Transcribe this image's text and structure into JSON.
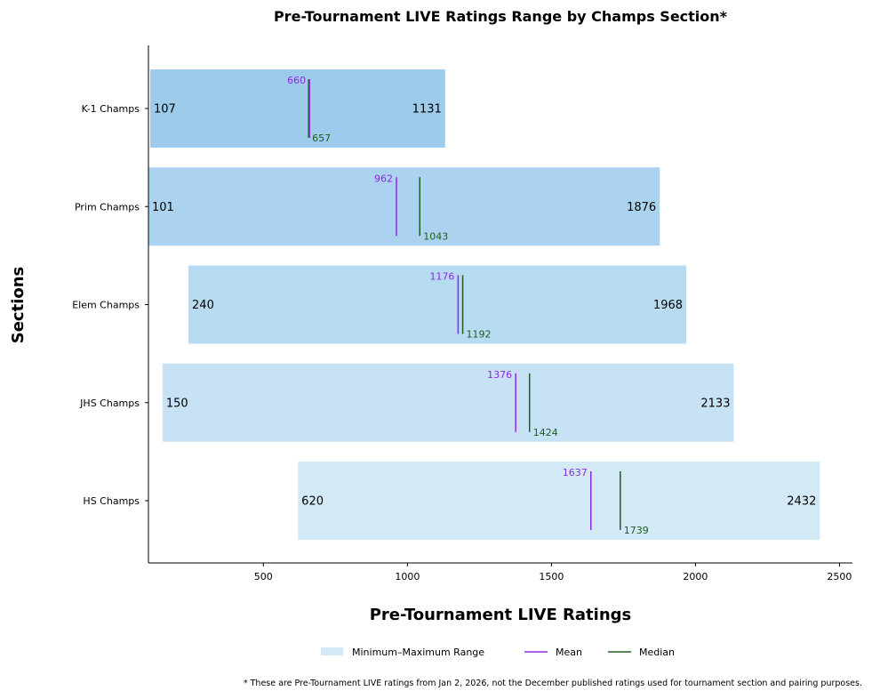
{
  "chart_data": {
    "type": "bar",
    "orientation": "horizontal-range",
    "title": "Pre-Tournament LIVE Ratings Range by Champs Section*",
    "xlabel": "Pre-Tournament LIVE Ratings",
    "ylabel": "Sections",
    "xlim": [
      101,
      2545
    ],
    "xticks": [
      500,
      1000,
      1500,
      2000,
      2500
    ],
    "grid": false,
    "categories": [
      "K-1 Champs",
      "Prim Champs",
      "Elem Champs",
      "JHS Champs",
      "HS Champs"
    ],
    "min": [
      107,
      101,
      240,
      150,
      620
    ],
    "max": [
      1131,
      1876,
      1968,
      2133,
      2432
    ],
    "mean": [
      660,
      962,
      1176,
      1376,
      1637
    ],
    "median": [
      657,
      1043,
      1192,
      1424,
      1739
    ],
    "bar_colors": [
      "#9ccbeb",
      "#abd2ee",
      "#b7dbf0",
      "#c7e2f4",
      "#d4e9f6"
    ],
    "mean_color": "#8a2be2",
    "median_color": "#1e5e1e",
    "legend": {
      "placement": "bottom-center",
      "entries": [
        "Minimum–Maximum Range",
        "Mean",
        "Median"
      ]
    },
    "footnote": "* These are Pre-Tournament LIVE ratings from Jan 2, 2026, not the December published ratings used for tournament section and pairing purposes."
  }
}
